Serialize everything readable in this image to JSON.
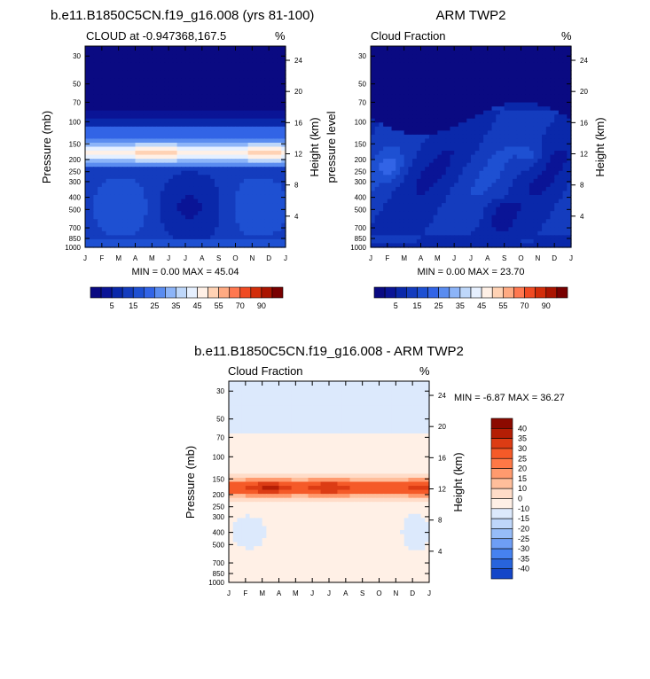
{
  "colors": {
    "blues": [
      "#0a0a82",
      "#0a1496",
      "#0a28aa",
      "#143cbe",
      "#1e50d2",
      "#3264e6",
      "#5082f0",
      "#6e9cf5",
      "#8cb4f8",
      "#aac8fa",
      "#c8dcfc",
      "#e6f0ff"
    ],
    "cloud_scale": [
      "#0a0a82",
      "#0a1496",
      "#0a28aa",
      "#143cbe",
      "#1e50d2",
      "#3264e6",
      "#5a8cf0",
      "#8cb4f8",
      "#bed7fa",
      "#e6f0ff",
      "#fff0e6",
      "#ffd2b4",
      "#ffaa82",
      "#ff7850",
      "#f04b23",
      "#d22d0a",
      "#aa1400",
      "#780000"
    ],
    "diff_scale": [
      "#00148c",
      "#0a28aa",
      "#1446c8",
      "#2864dc",
      "#4682f0",
      "#6e9ef5",
      "#96bcf8",
      "#bed6fa",
      "#dce9fc",
      "#fff0e6",
      "#ffdcc8",
      "#ffbe9b",
      "#ff9a6e",
      "#ff7846",
      "#f55a28",
      "#dc3c14",
      "#b41e05",
      "#8c0a00"
    ]
  },
  "chart_data": [
    {
      "type": "heatmap",
      "title": "b.e11.B1850C5CN.f19_g16.008 (yrs 81-100)",
      "subtitle": "CLOUD at -0.947368,167.5",
      "units": "%",
      "ylabel": "Pressure (mb)",
      "y2label": "Height (km)",
      "stats": "MIN =  0.00 MAX =  45.04",
      "field_key": "model"
    },
    {
      "type": "heatmap",
      "title": "ARM TWP2",
      "subtitle": "Cloud Fraction",
      "units": "%",
      "ylabel": "pressure level",
      "y2label": "Height (km)",
      "stats": "MIN =  0.00 MAX =  23.70",
      "field_key": "obs"
    },
    {
      "type": "heatmap",
      "title": "b.e11.B1850C5CN.f19_g16.008 - ARM TWP2",
      "subtitle": "Cloud Fraction",
      "units": "%",
      "ylabel": "Pressure (mb)",
      "y2label": "Height (km)",
      "stats": "MIN = -6.87 MAX =  36.27",
      "field_key": "diff"
    }
  ],
  "axes": {
    "months": [
      "J",
      "F",
      "M",
      "A",
      "M",
      "J",
      "J",
      "A",
      "S",
      "O",
      "N",
      "D",
      "J"
    ],
    "pressure_ticks": [
      "30",
      "50",
      "70",
      "100",
      "150",
      "200",
      "250",
      "300",
      "400",
      "500",
      "700",
      "850",
      "1000"
    ],
    "pressure_values": [
      30,
      50,
      70,
      100,
      150,
      200,
      250,
      300,
      400,
      500,
      700,
      850,
      1000
    ],
    "pressure_range": [
      25,
      1000
    ],
    "height_ticks": [
      "24",
      "20",
      "16",
      "12",
      "8",
      "4"
    ],
    "height_values": [
      24,
      20,
      16,
      12,
      8,
      4
    ],
    "scale_height_km": 7
  },
  "cloud_labelbar": {
    "levels": [
      "5",
      "15",
      "25",
      "35",
      "45",
      "55",
      "70",
      "90"
    ]
  },
  "diff_labelbar": {
    "levels": [
      "40",
      "35",
      "30",
      "25",
      "20",
      "15",
      "10",
      "0",
      "-10",
      "-15",
      "-20",
      "-25",
      "-30",
      "-35",
      "-40"
    ]
  }
}
